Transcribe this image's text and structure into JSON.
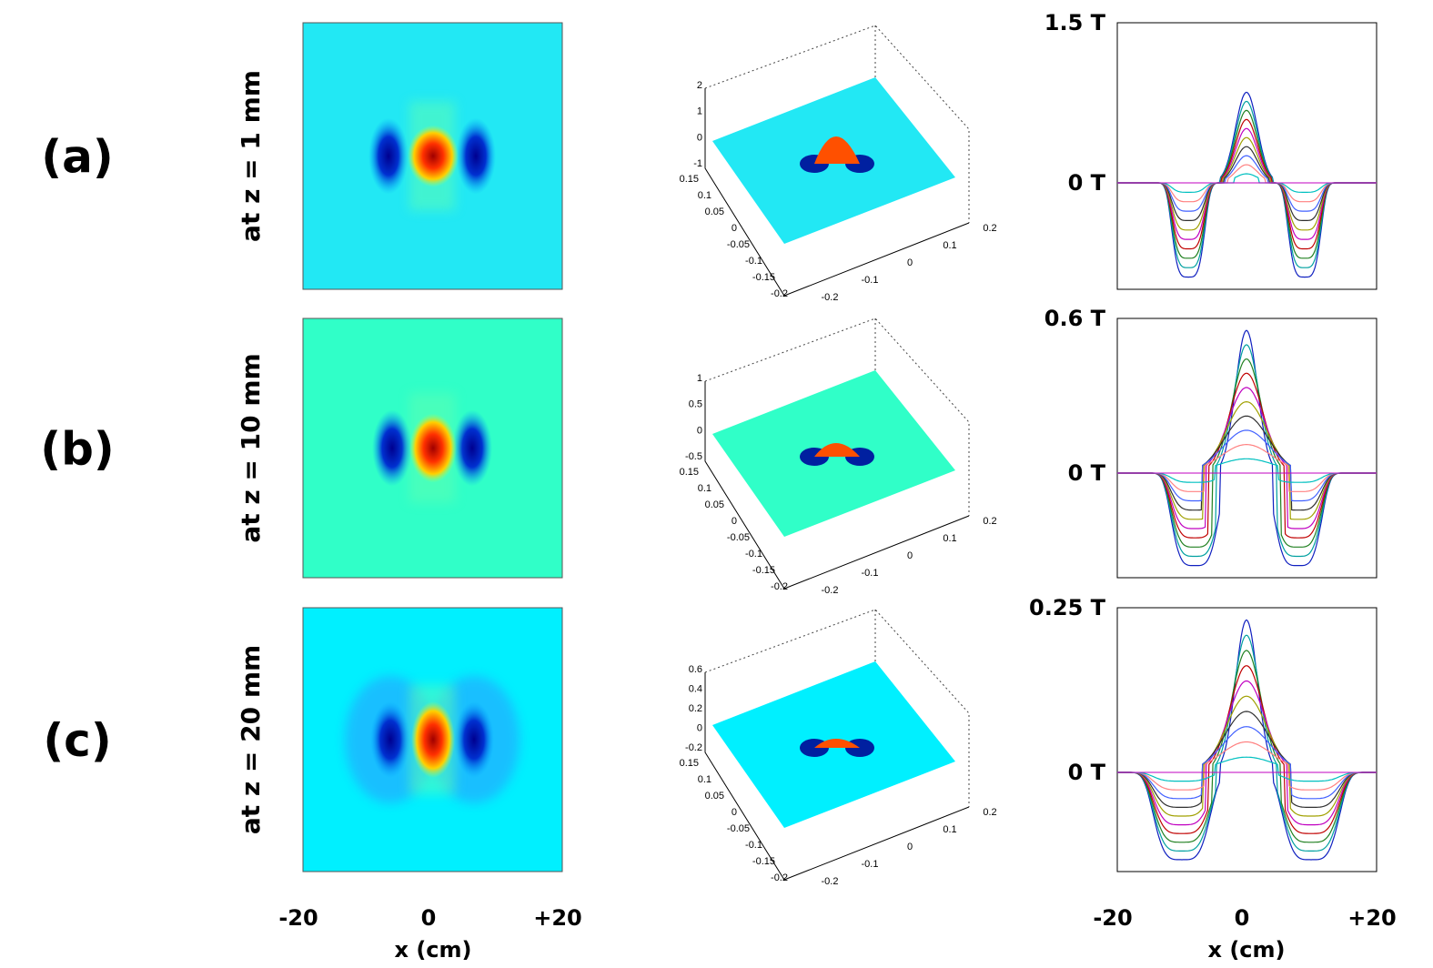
{
  "rows": [
    {
      "label": "(a)",
      "z_label": "at z = 1 mm",
      "surface_z_ticks": [
        "2",
        "1",
        "0",
        "-1"
      ],
      "profile_top": "1.5 T",
      "profile_zero": "0 T"
    },
    {
      "label": "(b)",
      "z_label": "at z = 10 mm",
      "surface_z_ticks": [
        "1",
        "0.5",
        "0",
        "-0.5"
      ],
      "profile_top": "0.6 T",
      "profile_zero": "0 T"
    },
    {
      "label": "(c)",
      "z_label": "at z = 20 mm",
      "surface_z_ticks": [
        "0.6",
        "0.4",
        "0.2",
        "0",
        "-0.2"
      ],
      "profile_top": "0.25 T",
      "profile_zero": "0 T"
    }
  ],
  "surface_y_ticks": [
    "0.15",
    "0.1",
    "0.05",
    "0",
    "-0.05",
    "-0.1",
    "-0.15",
    "-0.2"
  ],
  "surface_x_ticks": [
    "-0.2",
    "-0.1",
    "0",
    "0.1",
    "0.2"
  ],
  "x_axis": {
    "label": "x (cm)",
    "ticks": [
      "-20",
      "0",
      "+20"
    ]
  }
}
